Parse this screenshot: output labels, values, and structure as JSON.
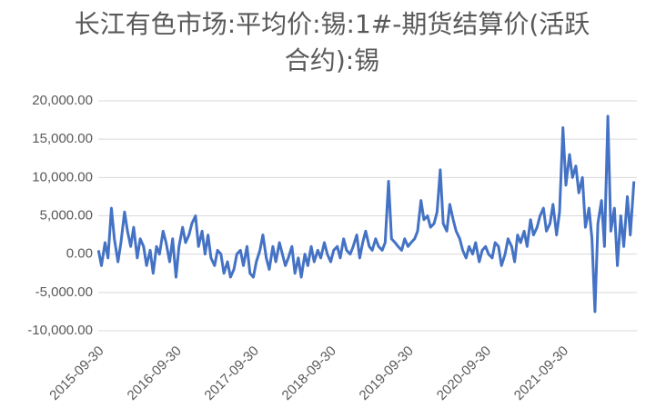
{
  "chart_data": {
    "type": "line",
    "title": [
      "长江有色市场:平均价:锡:1#-期货结算价(活跃",
      "合约):锡"
    ],
    "x": [
      "2015-10-01",
      "2015-10-15",
      "2015-11-01",
      "2015-11-15",
      "2015-12-01",
      "2015-12-15",
      "2016-01-01",
      "2016-01-15",
      "2016-02-01",
      "2016-02-15",
      "2016-03-01",
      "2016-03-15",
      "2016-04-01",
      "2016-04-15",
      "2016-05-01",
      "2016-05-15",
      "2016-06-01",
      "2016-06-15",
      "2016-07-01",
      "2016-07-15",
      "2016-08-01",
      "2016-08-15",
      "2016-09-01",
      "2016-09-15",
      "2016-10-01",
      "2016-10-15",
      "2016-11-01",
      "2016-11-15",
      "2016-12-01",
      "2016-12-15",
      "2017-01-01",
      "2017-01-15",
      "2017-02-01",
      "2017-02-15",
      "2017-03-01",
      "2017-03-15",
      "2017-04-01",
      "2017-04-15",
      "2017-05-01",
      "2017-05-15",
      "2017-06-01",
      "2017-06-15",
      "2017-07-01",
      "2017-07-15",
      "2017-08-01",
      "2017-08-15",
      "2017-09-01",
      "2017-09-15",
      "2017-10-01",
      "2017-10-15",
      "2017-11-01",
      "2017-11-15",
      "2017-12-01",
      "2017-12-15",
      "2018-01-01",
      "2018-01-15",
      "2018-02-01",
      "2018-02-15",
      "2018-03-01",
      "2018-03-15",
      "2018-04-01",
      "2018-04-15",
      "2018-05-01",
      "2018-05-15",
      "2018-06-01",
      "2018-06-15",
      "2018-07-01",
      "2018-07-15",
      "2018-08-01",
      "2018-08-15",
      "2018-09-01",
      "2018-09-15",
      "2018-10-01",
      "2018-10-15",
      "2018-11-01",
      "2018-11-15",
      "2018-12-01",
      "2018-12-15",
      "2019-01-01",
      "2019-01-15",
      "2019-02-01",
      "2019-02-15",
      "2019-03-01",
      "2019-03-15",
      "2019-04-01",
      "2019-04-15",
      "2019-05-01",
      "2019-05-15",
      "2019-06-01",
      "2019-06-15",
      "2019-07-01",
      "2019-07-15",
      "2019-08-01",
      "2019-08-15",
      "2019-09-01",
      "2019-09-15",
      "2019-10-01",
      "2019-10-15",
      "2019-11-01",
      "2019-11-15",
      "2019-12-01",
      "2019-12-15",
      "2020-01-01",
      "2020-01-15",
      "2020-02-01",
      "2020-02-15",
      "2020-03-01",
      "2020-03-15",
      "2020-04-01",
      "2020-04-15",
      "2020-05-01",
      "2020-05-15",
      "2020-06-01",
      "2020-06-15",
      "2020-07-01",
      "2020-07-15",
      "2020-08-01",
      "2020-08-15",
      "2020-09-01",
      "2020-09-15",
      "2020-10-01",
      "2020-10-15",
      "2020-11-01",
      "2020-11-15",
      "2020-12-01",
      "2020-12-15",
      "2021-01-01",
      "2021-01-15",
      "2021-02-01",
      "2021-02-15",
      "2021-03-01",
      "2021-03-15",
      "2021-04-01",
      "2021-04-15",
      "2021-05-01",
      "2021-05-15",
      "2021-06-01",
      "2021-06-15",
      "2021-07-01",
      "2021-07-15",
      "2021-08-01",
      "2021-08-15",
      "2021-09-01",
      "2021-09-15",
      "2021-10-01",
      "2021-10-15",
      "2021-11-01",
      "2021-11-15",
      "2021-12-01",
      "2021-12-15",
      "2022-01-01",
      "2022-01-15",
      "2022-02-01",
      "2022-02-15",
      "2022-03-01",
      "2022-03-15",
      "2022-04-01",
      "2022-04-15",
      "2022-05-01",
      "2022-05-15",
      "2022-06-01",
      "2022-06-15",
      "2022-07-01",
      "2022-07-15",
      "2022-08-01",
      "2022-08-15",
      "2022-09-01"
    ],
    "series": [
      {
        "color": "#4472c4",
        "values": [
          500,
          -1500,
          1500,
          -500,
          6000,
          2000,
          -1000,
          1500,
          5500,
          3000,
          1000,
          3500,
          -500,
          2000,
          1000,
          -1500,
          500,
          -2500,
          1000,
          0,
          3000,
          1500,
          -1000,
          2000,
          -3000,
          1000,
          3500,
          1500,
          2500,
          4000,
          5000,
          1000,
          3000,
          0,
          2500,
          -500,
          -1500,
          500,
          0,
          -2500,
          -1000,
          -3000,
          -2000,
          0,
          500,
          -1500,
          1000,
          -2500,
          -3000,
          -1000,
          500,
          2500,
          -500,
          -2000,
          1000,
          -1000,
          1500,
          0,
          -1500,
          -500,
          1000,
          -2500,
          -500,
          -3000,
          0,
          -1500,
          1000,
          -1000,
          500,
          -500,
          1500,
          0,
          -1000,
          500,
          1000,
          -500,
          2000,
          500,
          0,
          1000,
          2500,
          -500,
          1500,
          3000,
          1000,
          500,
          2000,
          1000,
          500,
          1500,
          9500,
          2000,
          1500,
          1000,
          500,
          2000,
          1000,
          1500,
          2000,
          3000,
          7000,
          4500,
          5000,
          3500,
          4000,
          5500,
          11000,
          4000,
          3000,
          6500,
          4500,
          3000,
          2000,
          500,
          -500,
          1000,
          0,
          1500,
          -1000,
          500,
          1000,
          0,
          -500,
          1500,
          1000,
          -1500,
          0,
          2000,
          1000,
          -1000,
          2500,
          1500,
          3000,
          1000,
          4500,
          2500,
          3500,
          5000,
          6000,
          3000,
          4000,
          6500,
          2500,
          5500,
          16500,
          9000,
          13000,
          10000,
          11500,
          8000,
          10000,
          3500,
          6000,
          2000,
          -7500,
          4000,
          7000,
          1000,
          18000,
          3000,
          6000,
          -1500,
          5000,
          1000,
          7500,
          2500,
          9500
        ]
      }
    ],
    "xlim": [
      "2015-09-30",
      "2022-09-15"
    ],
    "xticks": [
      "2015-09-30",
      "2016-09-30",
      "2017-09-30",
      "2018-09-30",
      "2019-09-30",
      "2020-09-30",
      "2021-09-30"
    ],
    "ylim": [
      -10000,
      20000
    ],
    "yticks": [
      {
        "value": -10000,
        "label": "-10,000.00"
      },
      {
        "value": -5000,
        "label": "-5,000.00"
      },
      {
        "value": 0,
        "label": "0.00"
      },
      {
        "value": 5000,
        "label": "5,000.00"
      },
      {
        "value": 10000,
        "label": "10,000.00"
      },
      {
        "value": 15000,
        "label": "15,000.00"
      },
      {
        "value": 20000,
        "label": "20,000.00"
      }
    ],
    "grid": true
  }
}
